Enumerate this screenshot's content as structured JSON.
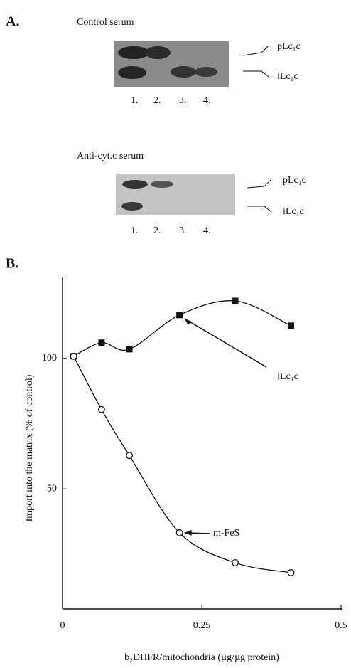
{
  "figure_a": {
    "label": "A.",
    "blots": [
      {
        "title": "Control serum",
        "bands": [
          "pLc₁c",
          "iLc₁c"
        ],
        "lanes": [
          "1.",
          "2.",
          "3.",
          "4."
        ]
      },
      {
        "title": "Anti-cyt.c serum",
        "bands": [
          "pLc₁c",
          "iLc₁c"
        ],
        "lanes": [
          "1.",
          "2.",
          "3.",
          "4."
        ]
      }
    ]
  },
  "chart_data": {
    "type": "line",
    "panel_label": "B.",
    "x_label": "b₂DHFR/mitochondria (µg/µg protein)",
    "y_label": "Import into the matrix (% of control)",
    "xlim": [
      0,
      0.5
    ],
    "xticks": [
      0,
      0.25,
      0.5
    ],
    "ylim": [
      4,
      131
    ],
    "yticks": [
      50,
      100
    ],
    "series": [
      {
        "name": "iLc₁c",
        "color": "#111111",
        "marker": "square",
        "x": [
          0.02,
          0.07,
          0.12,
          0.21,
          0.31,
          0.41
        ],
        "values": [
          100.8,
          106,
          103.5,
          116.6,
          122,
          112.5
        ]
      },
      {
        "name": "m-FeS",
        "color": "#111111",
        "marker": "circle",
        "x": [
          0.02,
          0.07,
          0.12,
          0.21,
          0.31,
          0.41
        ],
        "values": [
          100.8,
          80.4,
          62.8,
          33.2,
          21.7,
          17.9
        ]
      }
    ]
  }
}
